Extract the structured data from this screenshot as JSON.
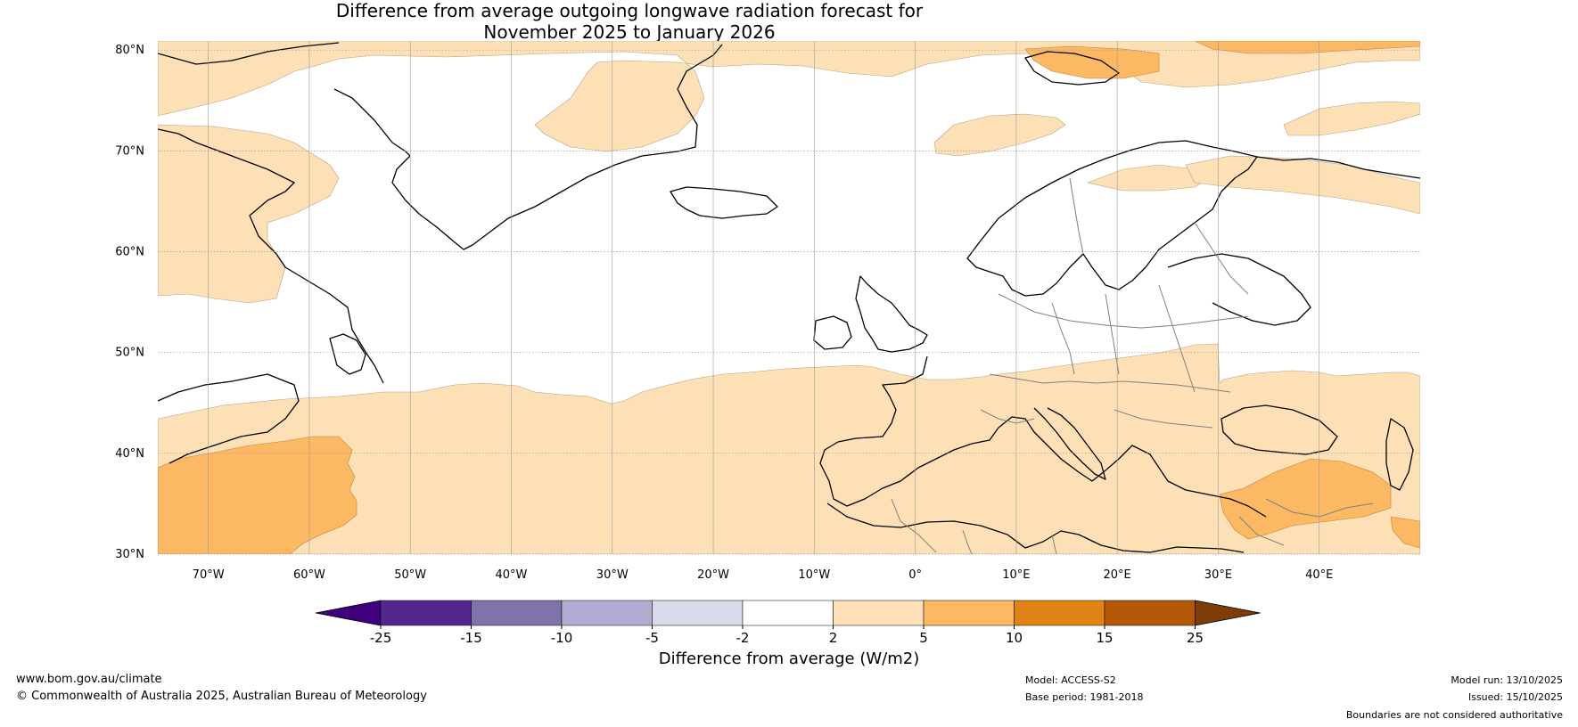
{
  "title": {
    "line1": "Difference from average outgoing longwave radiation forecast for",
    "line2": "November 2025 to January 2026"
  },
  "axes": {
    "lat_labels": [
      "80°N",
      "70°N",
      "60°N",
      "50°N",
      "40°N",
      "30°N"
    ],
    "lat_values": [
      80,
      70,
      60,
      50,
      40,
      30
    ],
    "lon_labels": [
      "70°W",
      "60°W",
      "50°W",
      "40°W",
      "30°W",
      "20°W",
      "10°W",
      "0°",
      "10°E",
      "20°E",
      "30°E",
      "40°E"
    ],
    "lon_values": [
      -70,
      -60,
      -50,
      -40,
      -30,
      -20,
      -10,
      0,
      10,
      20,
      30,
      40
    ],
    "lat_range": [
      30,
      80.9
    ],
    "lon_range": [
      -75,
      50
    ]
  },
  "colorbar": {
    "label": "Difference from average (W/m2)",
    "ticks": [
      "-25",
      "-15",
      "-10",
      "-5",
      "-2",
      "2",
      "5",
      "10",
      "15",
      "25"
    ],
    "colors": [
      "#3f007d",
      "#54278f",
      "#8073ac",
      "#b2abd2",
      "#d8daeb",
      "#ffffff",
      "#fee0b6",
      "#fdb863",
      "#e08214",
      "#b35806",
      "#7f3b08"
    ]
  },
  "footer": {
    "website": "www.bom.gov.au/climate",
    "copyright": "© Commonwealth of Australia 2025, Australian Bureau of Meteorology",
    "model": "Model: ACCESS-S2",
    "base_period": "Base period: 1981-2018",
    "model_run": "Model run: 13/10/2025",
    "issued": "Issued: 15/10/2025",
    "disclaimer": "Boundaries are not considered authoritative"
  },
  "colors": {
    "light_orange": "#fee0b6",
    "orange": "#fdb863",
    "coast": "#000000",
    "border": "#808080",
    "grid": "#9a9a9a"
  }
}
